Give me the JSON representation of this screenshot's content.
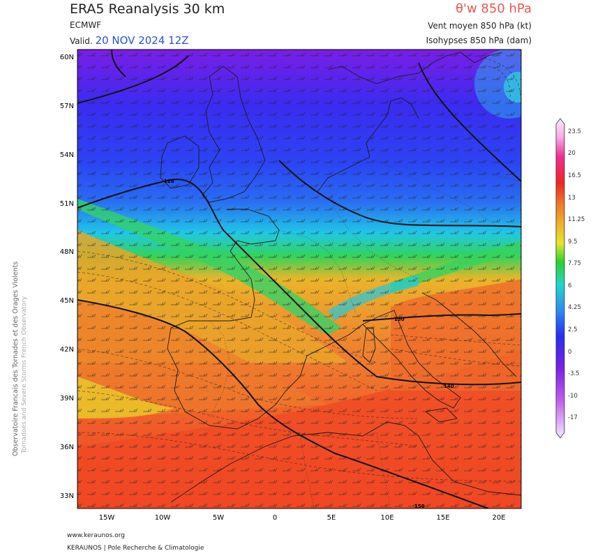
{
  "header": {
    "title": "ERA5 Reanalysis 30 km",
    "model": "ECMWF",
    "valid_prefix": "Valid.",
    "valid_date": "20 NOV 2024 12Z",
    "parameter": "θ'w 850 hPa",
    "wind_label": "Vent moyen 850 hPa (kt)",
    "isohypse_label": "Isohypses 850 hPa (dam)"
  },
  "side": {
    "line1": "Observatoire Francais des Tornades et des Orages Violents",
    "line2": "Tornadoes and Severe Storms French Observatory"
  },
  "footer": {
    "url": "www.keraunos.org",
    "org": "KERAUNOS | Pole Recherche & Climatologie"
  },
  "map": {
    "lat_labels": [
      "60N",
      "57N",
      "54N",
      "51N",
      "48N",
      "45N",
      "42N",
      "39N",
      "36N",
      "33N"
    ],
    "lon_labels": [
      "15W",
      "10W",
      "5W",
      "0",
      "5E",
      "10E",
      "15E",
      "20E"
    ],
    "contour_labels": [
      "128",
      "130",
      "140",
      "150"
    ]
  },
  "colorbar": {
    "labels": [
      "23.5",
      "20",
      "16.5",
      "13",
      "11.25",
      "9.5",
      "7.75",
      "6",
      "4.25",
      "2.5",
      "0",
      "-3.5",
      "-10",
      "-17"
    ]
  }
}
